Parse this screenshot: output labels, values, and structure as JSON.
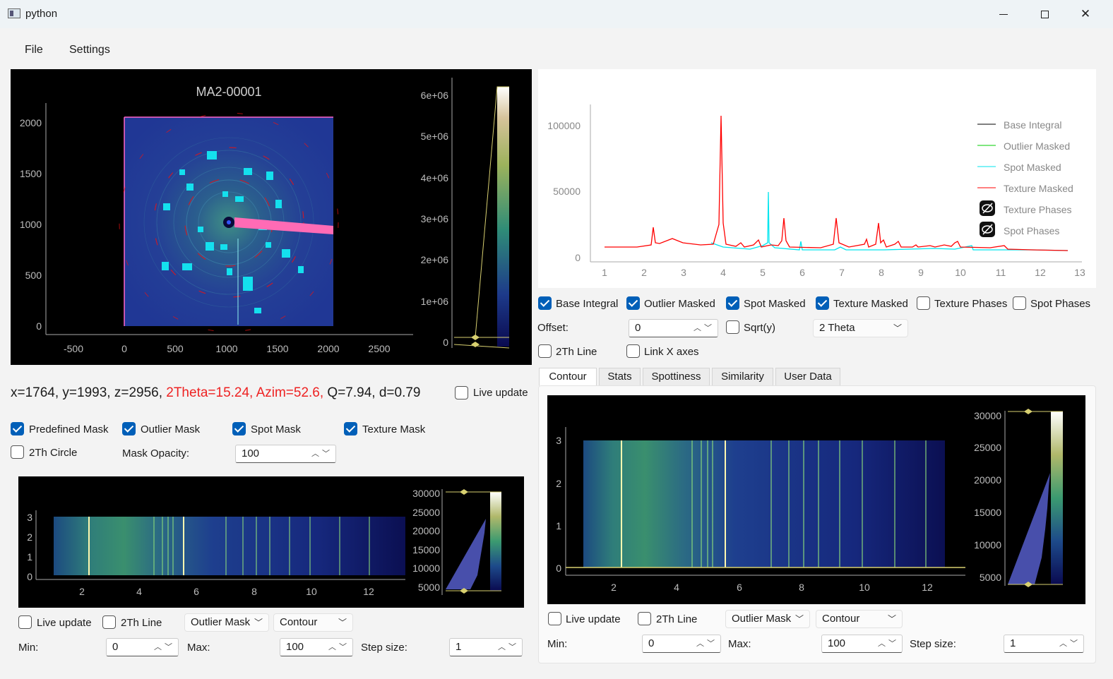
{
  "window": {
    "title": "python",
    "minimize": "—",
    "maximize": "☐",
    "close": "✕"
  },
  "menu": {
    "file": "File",
    "settings": "Settings"
  },
  "image_panel": {
    "title": "MA2-00001",
    "y_ticks": [
      "2000",
      "1500",
      "1000",
      "500",
      "0"
    ],
    "x_ticks": [
      "-500",
      "0",
      "500",
      "1000",
      "1500",
      "2000",
      "2500"
    ],
    "cbar_ticks": [
      "6e+06",
      "5e+06",
      "4e+06",
      "3e+06",
      "2e+06",
      "1e+06",
      "0"
    ]
  },
  "readout": {
    "prefix": "x=1764, y=1993, z=2956,",
    "highlight": " 2Theta=15.24, Azim=52.6,",
    "suffix": " Q=7.94, d=0.79",
    "live_update": "Live update"
  },
  "mask_options": {
    "predefined_mask": "Predefined Mask",
    "outlier_mask": "Outlier Mask",
    "spot_mask": "Spot Mask",
    "texture_mask": "Texture Mask",
    "two_th_circle": "2Th Circle",
    "mask_opacity_label": "Mask Opacity:",
    "mask_opacity_value": "100"
  },
  "left_contour": {
    "y_ticks": [
      "3",
      "2",
      "1",
      "0"
    ],
    "x_ticks": [
      "2",
      "4",
      "6",
      "8",
      "10",
      "12"
    ],
    "cbar_ticks": [
      "30000",
      "25000",
      "20000",
      "15000",
      "10000",
      "5000"
    ],
    "live_update": "Live update",
    "two_th_line": "2Th Line",
    "mask_select": "Outlier Mask",
    "plot_select": "Contour",
    "min_label": "Min:",
    "min_value": "0",
    "max_label": "Max:",
    "max_value": "100",
    "step_label": "Step size:",
    "step_value": "1"
  },
  "integral_plot": {
    "y_ticks": [
      "100000",
      "50000",
      "0"
    ],
    "x_ticks": [
      "1",
      "2",
      "3",
      "4",
      "5",
      "6",
      "7",
      "8",
      "9",
      "10",
      "11",
      "12",
      "13"
    ],
    "legend": {
      "base": "Base Integral",
      "outlier": "Outlier Masked",
      "spot": "Spot Masked",
      "texture": "Texture Masked",
      "texture_phases": "Texture Phases",
      "spot_phases": "Spot Phases"
    },
    "colors": {
      "base": "#000000",
      "outlier": "#00cc00",
      "spot": "#00e5ee",
      "texture": "#ff0000"
    }
  },
  "integral_controls": {
    "base_integral": "Base Integral",
    "outlier_masked": "Outlier Masked",
    "spot_masked": "Spot Masked",
    "texture_masked": "Texture Masked",
    "texture_phases": "Texture Phases",
    "spot_phases": "Spot Phases",
    "offset_label": "Offset:",
    "offset_value": "0",
    "sqrt_label": "Sqrt(y)",
    "axis_select": "2 Theta",
    "two_th_line": "2Th Line",
    "link_x": "Link X axes"
  },
  "tabs": [
    "Contour",
    "Stats",
    "Spottiness",
    "Similarity",
    "User Data"
  ],
  "right_contour": {
    "y_ticks": [
      "3",
      "2",
      "1",
      "0"
    ],
    "x_ticks": [
      "2",
      "4",
      "6",
      "8",
      "10",
      "12"
    ],
    "cbar_ticks": [
      "30000",
      "25000",
      "20000",
      "15000",
      "10000",
      "5000"
    ],
    "live_update": "Live update",
    "two_th_line": "2Th Line",
    "mask_select": "Outlier Mask",
    "plot_select": "Contour",
    "min_label": "Min:",
    "min_value": "0",
    "max_label": "Max:",
    "max_value": "100",
    "step_label": "Step size:",
    "step_value": "1"
  }
}
